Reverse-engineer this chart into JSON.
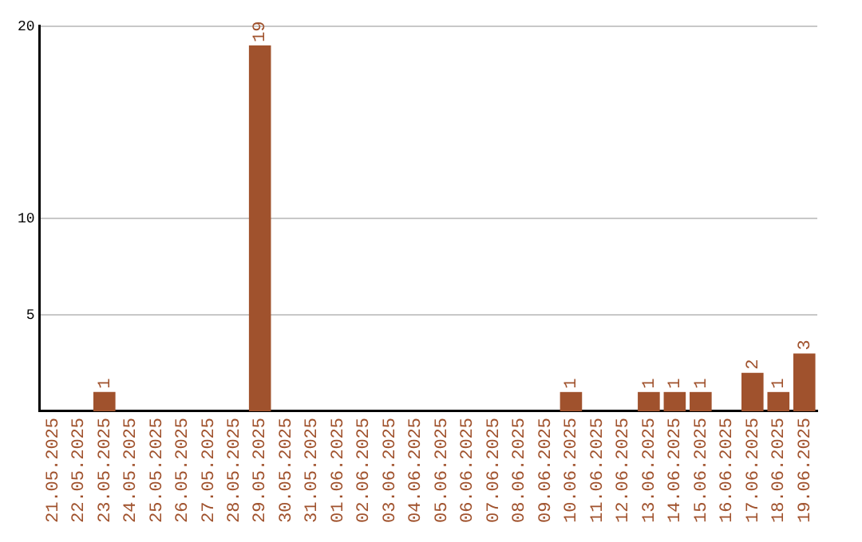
{
  "chart_data": {
    "type": "bar",
    "categories": [
      "21.05.2025",
      "22.05.2025",
      "23.05.2025",
      "24.05.2025",
      "25.05.2025",
      "26.05.2025",
      "27.05.2025",
      "28.05.2025",
      "29.05.2025",
      "30.05.2025",
      "31.05.2025",
      "01.06.2025",
      "02.06.2025",
      "03.06.2025",
      "04.06.2025",
      "05.06.2025",
      "06.06.2025",
      "07.06.2025",
      "08.06.2025",
      "09.06.2025",
      "10.06.2025",
      "11.06.2025",
      "12.06.2025",
      "13.06.2025",
      "14.06.2025",
      "15.06.2025",
      "16.06.2025",
      "17.06.2025",
      "18.06.2025",
      "19.06.2025"
    ],
    "values": [
      0,
      0,
      1,
      0,
      0,
      0,
      0,
      0,
      19,
      0,
      0,
      0,
      0,
      0,
      0,
      0,
      0,
      0,
      0,
      0,
      1,
      0,
      0,
      1,
      1,
      1,
      0,
      2,
      1,
      3
    ],
    "value_labels": [
      null,
      null,
      "1",
      null,
      null,
      null,
      null,
      null,
      "19",
      null,
      null,
      null,
      null,
      null,
      null,
      null,
      null,
      null,
      null,
      null,
      "1",
      null,
      null,
      "1",
      "1",
      "1",
      null,
      "2",
      "1",
      "3"
    ],
    "color": "#a0522d",
    "ylim": [
      0,
      20
    ],
    "yticks": [
      5,
      10,
      20
    ],
    "grid": "y"
  }
}
